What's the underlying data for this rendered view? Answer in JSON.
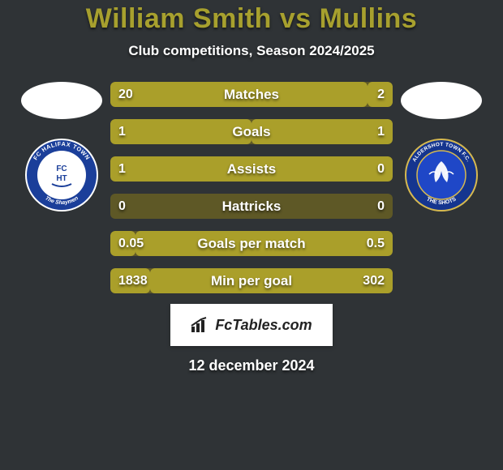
{
  "background_color": "#2f3336",
  "title": {
    "text": "William Smith vs Mullins",
    "color": "#a7a02e",
    "fontsize": 34,
    "fontweight": 900
  },
  "subtitle": {
    "text": "Club competitions, Season 2024/2025",
    "color": "#ffffff",
    "fontsize": 17
  },
  "left_side": {
    "flag_bg": "#ffffff",
    "crest": {
      "outer_color": "#1b3f9a",
      "inner_color": "#ffffff",
      "border_color": "#f7f7f7",
      "text_top": "FC HALIFAX TOWN",
      "text_bottom": "The Shaymen"
    }
  },
  "right_side": {
    "flag_bg": "#ffffff",
    "crest": {
      "outer_color": "#15358f",
      "inner_color": "#1f47c7",
      "border_color": "#d6b950",
      "text_top": "ALDERSHOT TOWN F.C.",
      "text_bottom": "THE SHOTS"
    }
  },
  "bars": {
    "track_color": "#5e5826",
    "fill_color": "#aa9f2a",
    "label_fontsize": 17,
    "value_fontsize": 16,
    "height": 31,
    "gap": 15,
    "rows": [
      {
        "label": "Matches",
        "left_val": "20",
        "right_val": "2",
        "left_pct": 91,
        "right_pct": 9
      },
      {
        "label": "Goals",
        "left_val": "1",
        "right_val": "1",
        "left_pct": 50,
        "right_pct": 50
      },
      {
        "label": "Assists",
        "left_val": "1",
        "right_val": "0",
        "left_pct": 100,
        "right_pct": 0
      },
      {
        "label": "Hattricks",
        "left_val": "0",
        "right_val": "0",
        "left_pct": 0,
        "right_pct": 0
      },
      {
        "label": "Goals per match",
        "left_val": "0.05",
        "right_val": "0.5",
        "left_pct": 9,
        "right_pct": 91
      },
      {
        "label": "Min per goal",
        "left_val": "1838",
        "right_val": "302",
        "left_pct": 14,
        "right_pct": 86
      }
    ]
  },
  "footer_brand": "FcTables.com",
  "date": "12 december 2024"
}
